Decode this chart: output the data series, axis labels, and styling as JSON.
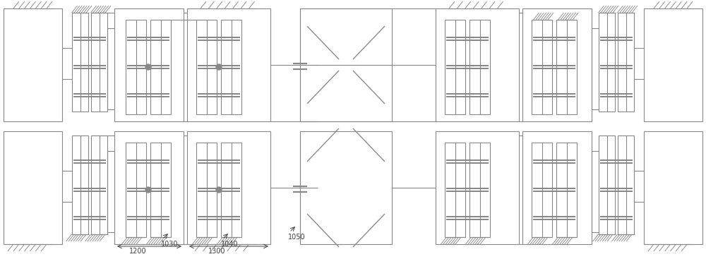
{
  "fig_width": 10.0,
  "fig_height": 3.67,
  "dpi": 100,
  "line_color": "#888888",
  "line_width": 0.8,
  "bg_color": "#ffffff"
}
